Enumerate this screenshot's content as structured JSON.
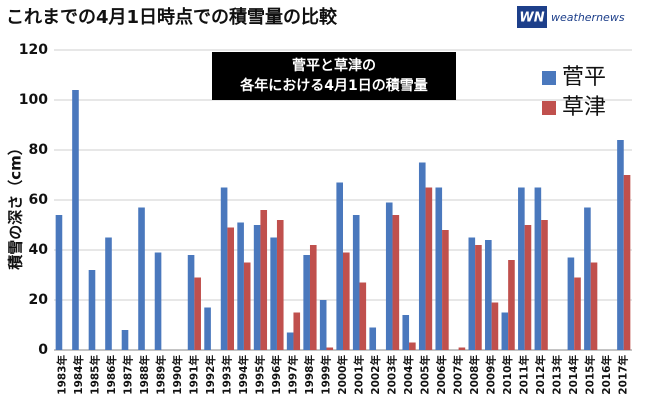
{
  "chart_data": {
    "type": "bar",
    "title": "これまでの4月1日時点での積雪量の比較",
    "annotation": [
      "菅平と草津の",
      "各年における4月1日の積雪量"
    ],
    "y_label": "積雪の深さ（cm）",
    "categories": [
      "1983年",
      "1984年",
      "1985年",
      "1986年",
      "1987年",
      "1988年",
      "1989年",
      "1990年",
      "1991年",
      "1992年",
      "1993年",
      "1994年",
      "1995年",
      "1996年",
      "1997年",
      "1998年",
      "1999年",
      "2000年",
      "2001年",
      "2002年",
      "2003年",
      "2004年",
      "2005年",
      "2006年",
      "2007年",
      "2008年",
      "2009年",
      "2010年",
      "2011年",
      "2012年",
      "2013年",
      "2014年",
      "2015年",
      "2016年",
      "2017年"
    ],
    "series": [
      {
        "name": "菅平",
        "color": "#4a78bd",
        "values": [
          54,
          104,
          32,
          45,
          8,
          57,
          39,
          0,
          38,
          17,
          65,
          51,
          50,
          45,
          7,
          38,
          20,
          67,
          54,
          9,
          59,
          14,
          75,
          65,
          0,
          45,
          44,
          15,
          65,
          65,
          0,
          37,
          57,
          0,
          84
        ]
      },
      {
        "name": "草津",
        "color": "#c0504d",
        "values": [
          null,
          null,
          null,
          null,
          null,
          null,
          null,
          null,
          29,
          0,
          49,
          35,
          56,
          52,
          15,
          42,
          1,
          39,
          27,
          0,
          54,
          3,
          65,
          48,
          1,
          42,
          19,
          36,
          50,
          52,
          0,
          29,
          35,
          0,
          70
        ]
      }
    ],
    "ylim": [
      0,
      120
    ],
    "yticks": [
      0,
      20,
      40,
      60,
      80,
      100,
      120
    ],
    "grid": true
  },
  "logo": {
    "mark": "WN",
    "text": "weathernews"
  }
}
